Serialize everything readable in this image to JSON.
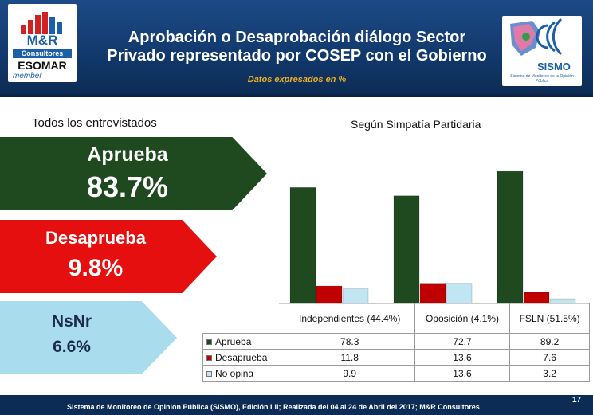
{
  "header": {
    "title_line1": "Aprobación o Desaprobación diálogo Sector",
    "title_line2": "Privado representado por COSEP con el Gobierno",
    "subtitle": "Datos expresados en %",
    "logo_left": {
      "brand": "M&R",
      "consultores": "Consultores",
      "esomar": "ESOMAR",
      "member": "member"
    },
    "logo_right": {
      "brand": "SISMO",
      "tagline": "Sistema de Monitoreo de la Opinión Pública"
    }
  },
  "left_panel": {
    "heading": "Todos los entrevistados",
    "items": [
      {
        "label": "Aprueba",
        "value": "83.7%",
        "color": "#1f4a1f"
      },
      {
        "label": "Desaprueba",
        "value": "9.8%",
        "color": "#e60f0f"
      },
      {
        "label": "NsNr",
        "value": "6.6%",
        "color": "#a9dcec"
      }
    ]
  },
  "chart_heading": "Según Simpatía Partidaria",
  "chart_data": {
    "type": "bar",
    "title": "Según Simpatía Partidaria",
    "categories": [
      "Independientes (44.4%)",
      "Oposición (4.1%)",
      "FSLN (51.5%)"
    ],
    "series": [
      {
        "name": "Aprueba",
        "values": [
          78.3,
          72.7,
          89.2
        ],
        "color": "#1f4a1f"
      },
      {
        "name": "Desaprueba",
        "values": [
          11.8,
          13.6,
          7.6
        ],
        "color": "#c00000"
      },
      {
        "name": "No opina",
        "values": [
          9.9,
          13.6,
          3.2
        ],
        "color": "#bfe6f2"
      }
    ],
    "ylim": [
      0,
      100
    ],
    "grid": false,
    "legend": "table-below"
  },
  "table": {
    "headers": [
      "Independientes (44.4%)",
      "Oposición (4.1%)",
      "FSLN (51.5%)"
    ],
    "rows": [
      {
        "label": "Aprueba",
        "values": [
          "78.3",
          "72.7",
          "89.2"
        ]
      },
      {
        "label": "Desaprueba",
        "values": [
          "11.8",
          "13.6",
          "7.6"
        ]
      },
      {
        "label": "No opina",
        "values": [
          "9.9",
          "13.6",
          "3.2"
        ]
      }
    ]
  },
  "footer": {
    "text": "Sistema de Monitoreo de Opinión Pública (SISMO), Edición LII; Realizada del 04 al 24 de Abril del 2017; M&R Consultores",
    "page": "17"
  }
}
